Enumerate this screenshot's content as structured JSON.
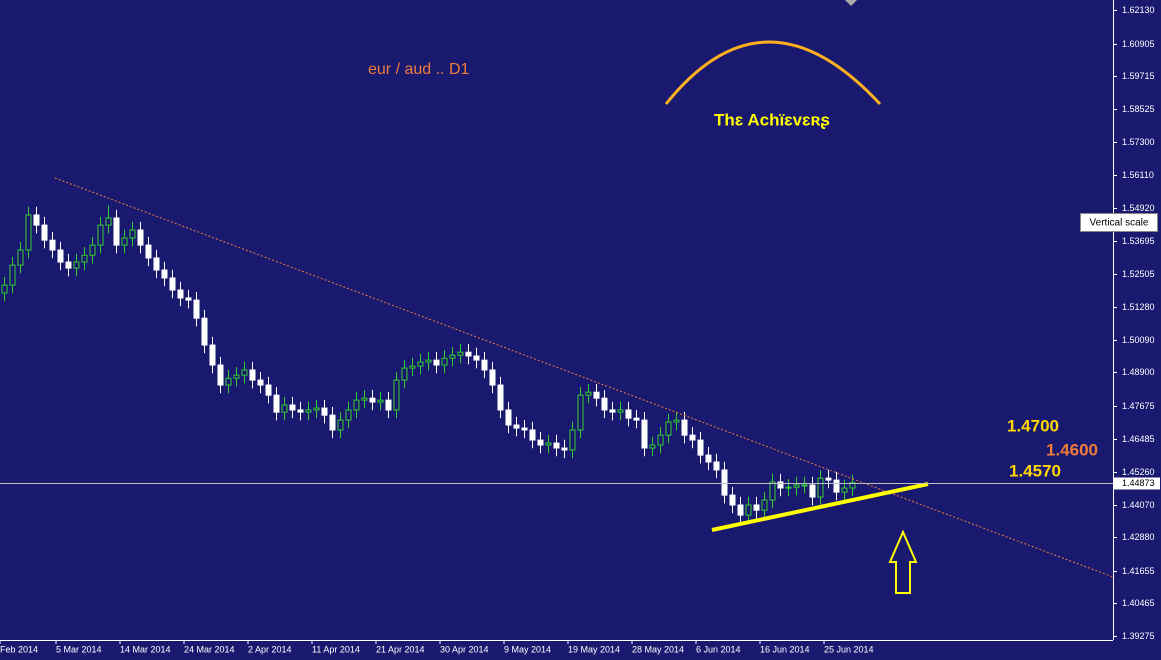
{
  "chart_data": {
    "type": "candlestick",
    "title": "eur / aud .. D1",
    "brand": "Thɛ Achïɛvɛʀʂ",
    "levels": [
      {
        "text": "1.4700",
        "color": "#ffd700"
      },
      {
        "text": "1.4600",
        "color": "#f07c3a"
      },
      {
        "text": "1.4570",
        "color": "#ffd700"
      }
    ],
    "tooltip": "Vertical scale",
    "last_price": {
      "value": 1.44873,
      "label": "1.44873"
    },
    "up_color": "#32cd32",
    "down_color": "#ffffff",
    "ylim": [
      1.3913,
      1.625
    ],
    "yticks": [
      {
        "value": 1.6213,
        "label": "1.62130"
      },
      1.60905,
      1.59715,
      1.58525,
      {
        "value": 1.573,
        "label": "1.57300"
      },
      {
        "value": 1.5611,
        "label": "1.56110"
      },
      {
        "value": 1.5492,
        "label": "1.54920"
      },
      1.53695,
      1.52505,
      {
        "value": 1.5128,
        "label": "1.51280"
      },
      {
        "value": 1.5009,
        "label": "1.50090"
      },
      {
        "value": 1.489,
        "label": "1.48900"
      },
      1.47675,
      1.46485,
      {
        "value": 1.4526,
        "label": "1.45260"
      },
      {
        "value": 1.4407,
        "label": "1.44070"
      },
      {
        "value": 1.4288,
        "label": "1.42880"
      },
      1.41655,
      1.40465,
      1.39275
    ],
    "xticks": [
      {
        "value": 0,
        "label": "Feb 2014"
      },
      {
        "value": 7,
        "label": "5 Mar 2014"
      },
      {
        "value": 15,
        "label": "14 Mar 2014"
      },
      {
        "value": 23,
        "label": "24 Mar 2014"
      },
      {
        "value": 31,
        "label": "2 Apr 2014"
      },
      {
        "value": 39,
        "label": "11 Apr 2014"
      },
      {
        "value": 47,
        "label": "21 Apr 2014"
      },
      {
        "value": 55,
        "label": "30 Apr 2014"
      },
      {
        "value": 63,
        "label": "9 May 2014"
      },
      {
        "value": 71,
        "label": "19 May 2014"
      },
      {
        "value": 79,
        "label": "28 May 2014"
      },
      {
        "value": 87,
        "label": "6 Jun 2014"
      },
      {
        "value": 95,
        "label": "16 Jun 2014"
      },
      {
        "value": 103,
        "label": "25 Jun 2014"
      }
    ],
    "ohlc": [
      [
        1.518,
        1.5239,
        1.515,
        1.5209
      ],
      [
        1.5209,
        1.5312,
        1.5179,
        1.5282
      ],
      [
        1.5282,
        1.5367,
        1.5252,
        1.5337
      ],
      [
        1.5337,
        1.5495,
        1.5307,
        1.5465
      ],
      [
        1.5465,
        1.5495,
        1.5398,
        1.5428
      ],
      [
        1.5428,
        1.5458,
        1.5343,
        1.5373
      ],
      [
        1.5373,
        1.5403,
        1.5307,
        1.5337
      ],
      [
        1.5337,
        1.5367,
        1.5263,
        1.5293
      ],
      [
        1.5293,
        1.5323,
        1.5241,
        1.5271
      ],
      [
        1.5271,
        1.5323,
        1.5241,
        1.5293
      ],
      [
        1.5293,
        1.5348,
        1.5263,
        1.5318
      ],
      [
        1.5318,
        1.5385,
        1.5288,
        1.5355
      ],
      [
        1.5355,
        1.5458,
        1.5325,
        1.5428
      ],
      [
        1.5428,
        1.55,
        1.5398,
        1.5454
      ],
      [
        1.5454,
        1.5484,
        1.5325,
        1.5355
      ],
      [
        1.5355,
        1.5411,
        1.5325,
        1.5381
      ],
      [
        1.5381,
        1.544,
        1.5351,
        1.541
      ],
      [
        1.541,
        1.544,
        1.5325,
        1.5355
      ],
      [
        1.5355,
        1.5385,
        1.5278,
        1.5308
      ],
      [
        1.5308,
        1.5338,
        1.5234,
        1.5264
      ],
      [
        1.5264,
        1.5294,
        1.5205,
        1.5235
      ],
      [
        1.5235,
        1.5265,
        1.5161,
        1.5191
      ],
      [
        1.5191,
        1.5221,
        1.5132,
        1.5162
      ],
      [
        1.5162,
        1.5192,
        1.5124,
        1.5154
      ],
      [
        1.5154,
        1.5184,
        1.5058,
        1.5088
      ],
      [
        1.5088,
        1.5118,
        1.496,
        1.499
      ],
      [
        1.499,
        1.502,
        1.4887,
        1.4917
      ],
      [
        1.4917,
        1.4947,
        1.4814,
        1.4844
      ],
      [
        1.4844,
        1.4899,
        1.4814,
        1.4869
      ],
      [
        1.4869,
        1.491,
        1.4839,
        1.488
      ],
      [
        1.488,
        1.4929,
        1.485,
        1.4899
      ],
      [
        1.4899,
        1.4929,
        1.4832,
        1.4862
      ],
      [
        1.4862,
        1.4892,
        1.4814,
        1.4844
      ],
      [
        1.4844,
        1.4874,
        1.4777,
        1.4807
      ],
      [
        1.4807,
        1.4837,
        1.4715,
        1.4745
      ],
      [
        1.4745,
        1.4801,
        1.4715,
        1.4771
      ],
      [
        1.4771,
        1.4801,
        1.4723,
        1.4753
      ],
      [
        1.4753,
        1.4783,
        1.4715,
        1.4745
      ],
      [
        1.4745,
        1.4783,
        1.4715,
        1.4753
      ],
      [
        1.4753,
        1.479,
        1.4723,
        1.476
      ],
      [
        1.476,
        1.479,
        1.4704,
        1.4734
      ],
      [
        1.4734,
        1.4764,
        1.465,
        1.468
      ],
      [
        1.468,
        1.4746,
        1.465,
        1.4716
      ],
      [
        1.4716,
        1.4783,
        1.4686,
        1.4753
      ],
      [
        1.4753,
        1.4819,
        1.4723,
        1.4789
      ],
      [
        1.4789,
        1.4826,
        1.4759,
        1.4796
      ],
      [
        1.4796,
        1.4826,
        1.4752,
        1.4782
      ],
      [
        1.4782,
        1.4819,
        1.4752,
        1.4789
      ],
      [
        1.4789,
        1.4819,
        1.4723,
        1.4753
      ],
      [
        1.4753,
        1.4892,
        1.4723,
        1.4862
      ],
      [
        1.4862,
        1.4936,
        1.4832,
        1.4906
      ],
      [
        1.4906,
        1.4943,
        1.4876,
        1.4913
      ],
      [
        1.4913,
        1.4958,
        1.4883,
        1.4928
      ],
      [
        1.4928,
        1.4965,
        1.4898,
        1.4935
      ],
      [
        1.4935,
        1.4965,
        1.4887,
        1.4917
      ],
      [
        1.4917,
        1.4972,
        1.4887,
        1.4942
      ],
      [
        1.4942,
        1.4983,
        1.4912,
        1.4953
      ],
      [
        1.4953,
        1.4994,
        1.4923,
        1.4964
      ],
      [
        1.4964,
        1.4994,
        1.492,
        1.495
      ],
      [
        1.495,
        1.498,
        1.4905,
        1.4935
      ],
      [
        1.4935,
        1.4965,
        1.4869,
        1.4899
      ],
      [
        1.4899,
        1.4929,
        1.4814,
        1.4844
      ],
      [
        1.4844,
        1.4874,
        1.4723,
        1.4753
      ],
      [
        1.4753,
        1.4783,
        1.4668,
        1.4698
      ],
      [
        1.4698,
        1.4728,
        1.4657,
        1.4687
      ],
      [
        1.4687,
        1.4717,
        1.465,
        1.468
      ],
      [
        1.468,
        1.471,
        1.4613,
        1.4643
      ],
      [
        1.4643,
        1.4673,
        1.4595,
        1.4625
      ],
      [
        1.4625,
        1.4662,
        1.4595,
        1.4632
      ],
      [
        1.4632,
        1.4662,
        1.4584,
        1.4614
      ],
      [
        1.4614,
        1.4644,
        1.4577,
        1.4607
      ],
      [
        1.4607,
        1.471,
        1.4577,
        1.468
      ],
      [
        1.468,
        1.4837,
        1.465,
        1.4807
      ],
      [
        1.4807,
        1.4848,
        1.4777,
        1.4818
      ],
      [
        1.4818,
        1.4848,
        1.4766,
        1.4796
      ],
      [
        1.4796,
        1.4826,
        1.4723,
        1.4753
      ],
      [
        1.4753,
        1.4783,
        1.4715,
        1.4745
      ],
      [
        1.4745,
        1.4783,
        1.4715,
        1.4753
      ],
      [
        1.4753,
        1.4783,
        1.4693,
        1.4723
      ],
      [
        1.4723,
        1.4753,
        1.4686,
        1.4716
      ],
      [
        1.4716,
        1.4746,
        1.4584,
        1.4614
      ],
      [
        1.4614,
        1.4655,
        1.4584,
        1.4625
      ],
      [
        1.4625,
        1.4691,
        1.4595,
        1.4661
      ],
      [
        1.4661,
        1.4739,
        1.4631,
        1.4709
      ],
      [
        1.4709,
        1.4746,
        1.4679,
        1.4716
      ],
      [
        1.4716,
        1.4746,
        1.4631,
        1.4661
      ],
      [
        1.4661,
        1.4691,
        1.4613,
        1.4643
      ],
      [
        1.4643,
        1.4673,
        1.4558,
        1.4588
      ],
      [
        1.4588,
        1.4618,
        1.4533,
        1.4563
      ],
      [
        1.4563,
        1.4593,
        1.4504,
        1.4534
      ],
      [
        1.4534,
        1.4564,
        1.4412,
        1.4442
      ],
      [
        1.4442,
        1.4472,
        1.4376,
        1.4406
      ],
      [
        1.4406,
        1.4436,
        1.4339,
        1.4369
      ],
      [
        1.4369,
        1.4436,
        1.4339,
        1.4406
      ],
      [
        1.4406,
        1.4436,
        1.4357,
        1.4387
      ],
      [
        1.4387,
        1.4454,
        1.4357,
        1.4424
      ],
      [
        1.4424,
        1.452,
        1.4394,
        1.449
      ],
      [
        1.449,
        1.452,
        1.4438,
        1.4468
      ],
      [
        1.4468,
        1.4501,
        1.4438,
        1.4471
      ],
      [
        1.4471,
        1.4509,
        1.4441,
        1.4479
      ],
      [
        1.4479,
        1.4509,
        1.4449,
        1.4479
      ],
      [
        1.4479,
        1.4509,
        1.4405,
        1.4435
      ],
      [
        1.4435,
        1.4534,
        1.4405,
        1.4504
      ],
      [
        1.4504,
        1.4534,
        1.4467,
        1.4497
      ],
      [
        1.4497,
        1.4527,
        1.4423,
        1.4453
      ],
      [
        1.4453,
        1.4498,
        1.4423,
        1.4468
      ],
      [
        1.4468,
        1.4517,
        1.4438,
        1.44873
      ]
    ]
  }
}
